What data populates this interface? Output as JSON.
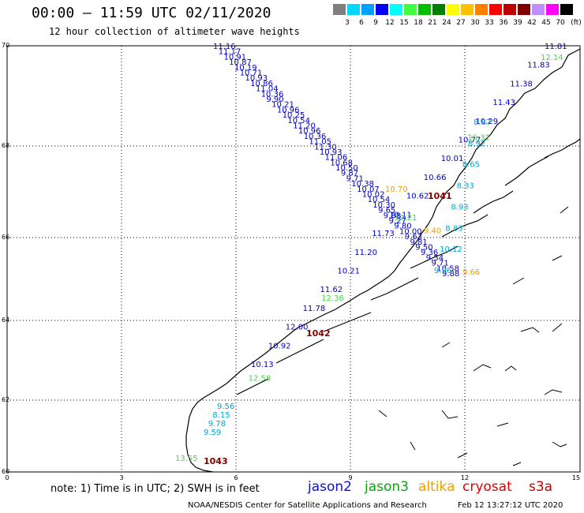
{
  "header": {
    "title": "00:00 – 11:59 UTC 02/11/2020",
    "subtitle": "12 hour collection of altimeter wave heights"
  },
  "colorbar": {
    "unit_label": "(ft)",
    "labels": [
      "3",
      "6",
      "9",
      "12",
      "15",
      "18",
      "21",
      "24",
      "27",
      "30",
      "33",
      "36",
      "39",
      "42",
      "45",
      "70"
    ],
    "colors": [
      "#7f7f7f",
      "#00d8ff",
      "#00a0ff",
      "#0000ff",
      "#00ffff",
      "#40ff40",
      "#00c000",
      "#008000",
      "#ffff00",
      "#ffc000",
      "#ff8000",
      "#ff0000",
      "#c00000",
      "#800000",
      "#c08fff",
      "#ff00ff",
      "#000000"
    ]
  },
  "axes": {
    "lat_ticks": [
      "70",
      "68",
      "66",
      "64",
      "62",
      "60"
    ],
    "lon_ticks": [
      "0",
      "3",
      "6",
      "9",
      "12",
      "15"
    ]
  },
  "track_values": {
    "tracks": [
      {
        "name": "track-a",
        "color": "#0000c8",
        "values": [
          "11.16",
          "11.17",
          "10.91",
          "10.87",
          "10.19",
          "10.71",
          "10.93",
          "10.86",
          "11.04",
          "10.36",
          "9.90",
          "10.21",
          "10.96",
          "10.25",
          "10.54",
          "11.20",
          "10.96",
          "10.36",
          "11.05",
          "11.30",
          "10.93",
          "11.06",
          "10.68",
          "10.50",
          "9.87",
          "9.71",
          "10.38",
          "10.07",
          "10.02",
          "10.54",
          "10.30",
          "9.65",
          "9.88",
          "9.27",
          "9.80",
          "10.00",
          "9.63",
          "9.81",
          "9.50",
          "9.36",
          "9.54",
          "9.71",
          "10.58",
          "9.88"
        ]
      },
      {
        "name": "track-b",
        "color": "#0000c8",
        "values": [
          "11.81",
          "11.83",
          "11.38",
          "11.43",
          "10.29",
          "10.77",
          "10.01",
          "10.66",
          "10.62",
          "10.11",
          "11.73",
          "11.20",
          "10.21",
          "11.62",
          "11.78",
          "12.00",
          "10.92",
          "10.13"
        ]
      },
      {
        "name": "track-c",
        "color": "#00a8d0",
        "values": [
          "8.87",
          "8.92",
          "8.65",
          "8.33",
          "8.93",
          "8.83",
          "10.12",
          "9.96"
        ]
      },
      {
        "name": "track-d",
        "color": "#50d050",
        "values": [
          "12.14",
          "16.31",
          "12.21",
          "12.36",
          "12.58",
          "13.55"
        ]
      },
      {
        "name": "track-e",
        "color": "#00a8d0",
        "values": [
          "9.56",
          "8.15",
          "9.78",
          "9.59"
        ]
      },
      {
        "name": "track-f",
        "color": "#f0a000",
        "values": [
          "10.70",
          "9.40",
          "9.66"
        ]
      }
    ],
    "pressure_labels": [
      "1041",
      "1042",
      "1043"
    ]
  },
  "footer": {
    "note": "note:  1) Time is in UTC; 2) SWH is in feet",
    "legend": [
      {
        "label": "jason2",
        "color": "#1010d0"
      },
      {
        "label": "jason3",
        "color": "#10a010"
      },
      {
        "label": "altika",
        "color": "#f0a000"
      },
      {
        "label": "cryosat",
        "color": "#e00000"
      },
      {
        "label": "s3a",
        "color": "#c00000"
      }
    ],
    "credit": "NOAA/NESDIS Center for Satellite Applications and Research",
    "timestamp": "Feb 12 13:27:12 UTC 2020"
  }
}
